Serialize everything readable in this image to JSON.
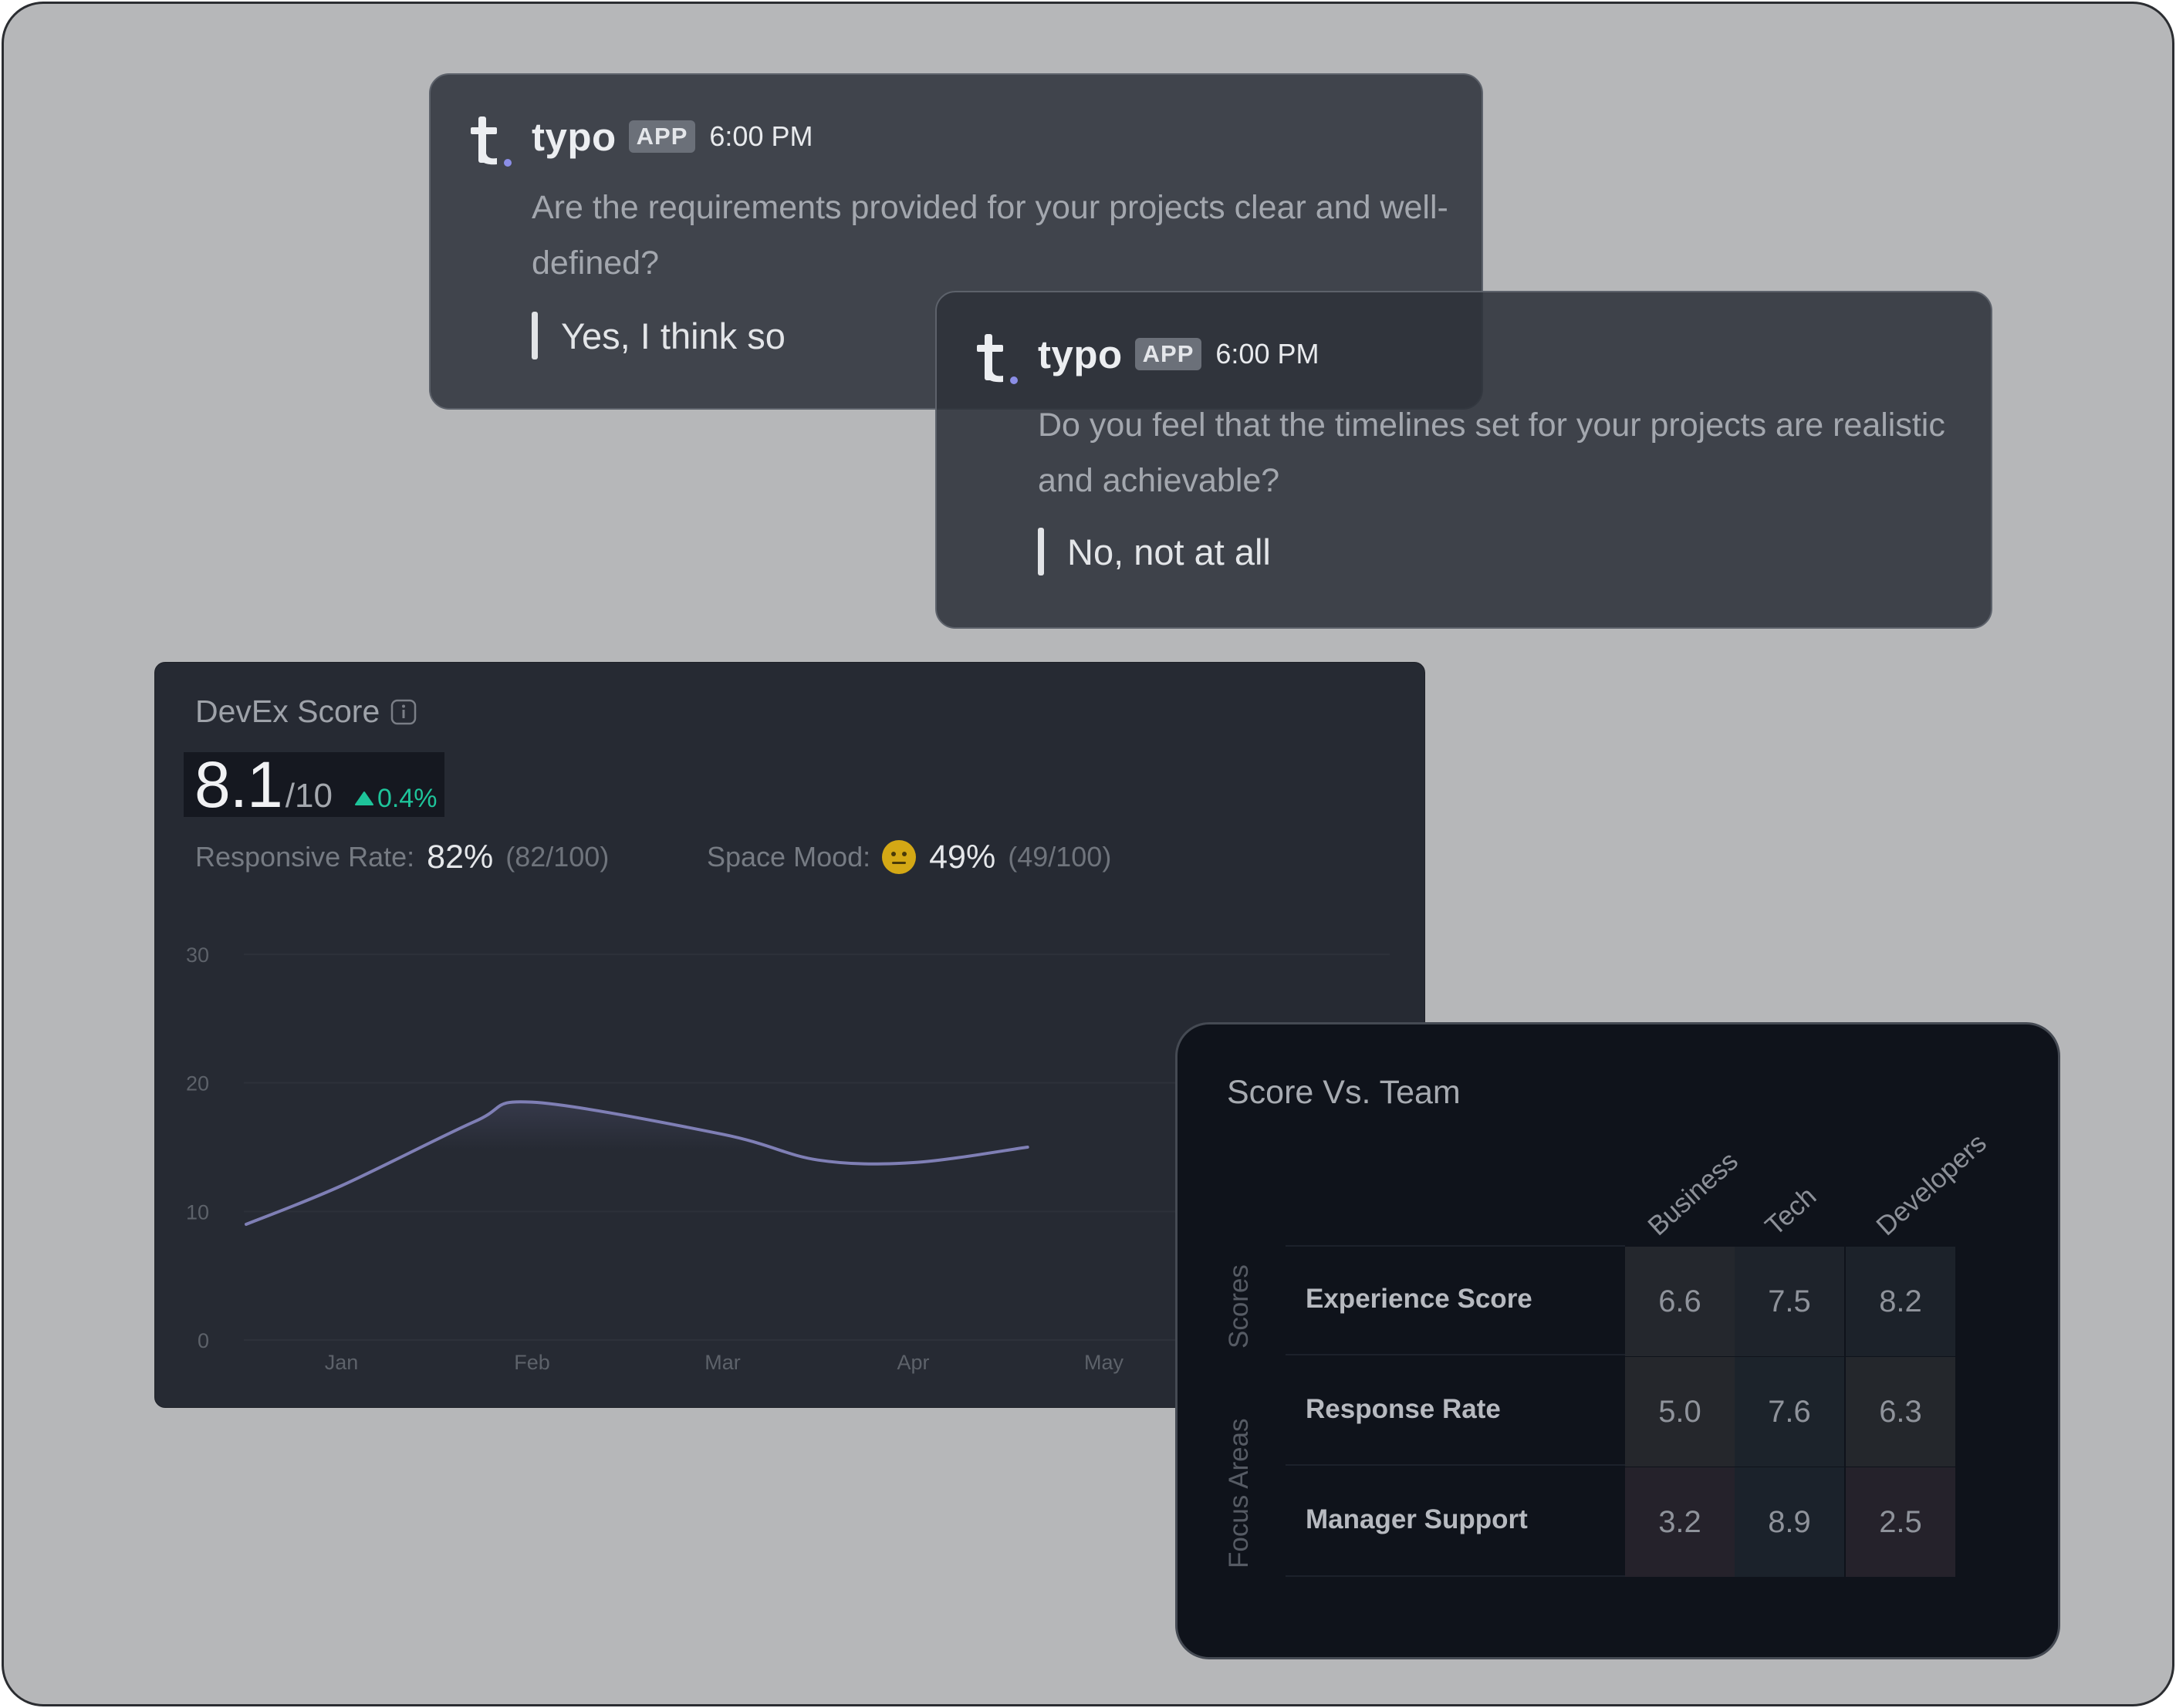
{
  "messages": [
    {
      "brand": "typo",
      "badge": "APP",
      "time": "6:00 PM",
      "question": "Are the requirements provided for your projects clear and well-defined?",
      "answer": "Yes, I think so"
    },
    {
      "brand": "typo",
      "badge": "APP",
      "time": "6:00 PM",
      "question": "Do you feel that the timelines set for your projects are realistic and achievable?",
      "answer": "No, not at all"
    }
  ],
  "devex": {
    "title": "DevEx Score",
    "score": "8.1",
    "score_denominator": "/10",
    "delta": "0.4%",
    "responsive_rate": {
      "label": "Responsive Rate:",
      "value": "82%",
      "detail": "(82/100)"
    },
    "space_mood": {
      "label": "Space Mood:",
      "value": "49%",
      "detail": "(49/100)",
      "icon": "neutral-face-icon"
    },
    "colors": {
      "delta": "#1ec49a",
      "line": "#7f7fb5",
      "mood": "#d4a815"
    }
  },
  "chart_data": {
    "type": "line",
    "title": "",
    "xlabel": "",
    "ylabel": "",
    "categories": [
      "Jan",
      "Feb",
      "Mar",
      "Apr",
      "May"
    ],
    "x": [
      0.5,
      1,
      1.7,
      2,
      3,
      3.5,
      4,
      4.6
    ],
    "series": [
      {
        "values": [
          9,
          12,
          17,
          18.5,
          16,
          14,
          13.8,
          15
        ]
      }
    ],
    "yticks": [
      0,
      10,
      20,
      30
    ],
    "ylim": [
      0,
      30
    ],
    "grid": true
  },
  "team": {
    "title": "Score Vs. Team",
    "columns": [
      "Business",
      "Tech",
      "Developers"
    ],
    "row_groups": [
      "Scores",
      "Focus Areas"
    ],
    "rows": [
      {
        "label": "Experience Score",
        "values": [
          "6.6",
          "7.5",
          "8.2"
        ]
      },
      {
        "label": "Response Rate",
        "values": [
          "5.0",
          "7.6",
          "6.3"
        ]
      },
      {
        "label": "Manager Support",
        "values": [
          "3.2",
          "8.9",
          "2.5"
        ]
      }
    ],
    "cell_colors": [
      [
        "#24272d",
        "#1e232b",
        "#1c222a"
      ],
      [
        "#25272c",
        "#1c232b",
        "#24272c"
      ],
      [
        "#25222b",
        "#1b222b",
        "#25222b"
      ]
    ]
  }
}
